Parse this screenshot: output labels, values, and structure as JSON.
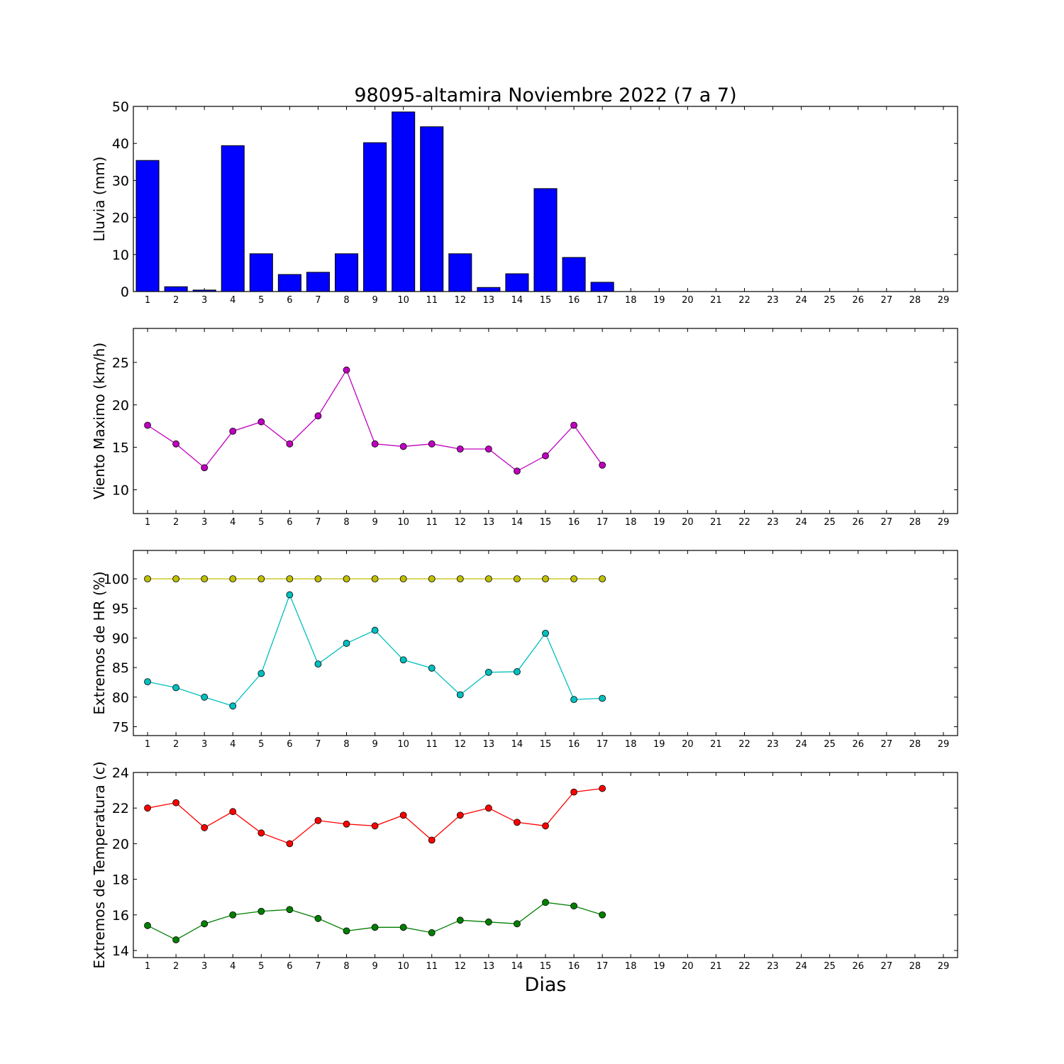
{
  "title": "98095-altamira Noviembre 2022  (7 a 7)",
  "xlabel": "Dias",
  "chart_data": [
    {
      "type": "bar",
      "id": "lluvia",
      "ylabel": "Lluvia (mm)",
      "ylim": [
        0,
        50
      ],
      "yticks": [
        0,
        10,
        20,
        30,
        40,
        50
      ],
      "xlim": [
        0.5,
        29.5
      ],
      "xticks": [
        1,
        2,
        3,
        4,
        5,
        6,
        7,
        8,
        9,
        10,
        11,
        12,
        13,
        14,
        15,
        16,
        17,
        18,
        19,
        20,
        21,
        22,
        23,
        24,
        25,
        26,
        27,
        28,
        29
      ],
      "color": "#0000ff",
      "series": [
        {
          "x": [
            1,
            2,
            3,
            4,
            5,
            6,
            7,
            8,
            9,
            10,
            11,
            12,
            13,
            14,
            15,
            16,
            17
          ],
          "values": [
            35.4,
            1.3,
            0.4,
            39.4,
            10.2,
            4.6,
            5.2,
            10.2,
            40.2,
            48.5,
            44.5,
            10.2,
            1.1,
            4.8,
            27.8,
            9.2,
            2.5
          ]
        }
      ]
    },
    {
      "type": "line",
      "id": "viento",
      "ylabel": "Viento Maximo (km/h)",
      "ylim": [
        7.2,
        29
      ],
      "yticks": [
        10,
        15,
        20,
        25
      ],
      "xlim": [
        0.5,
        29.5
      ],
      "xticks": [
        1,
        2,
        3,
        4,
        5,
        6,
        7,
        8,
        9,
        10,
        11,
        12,
        13,
        14,
        15,
        16,
        17,
        18,
        19,
        20,
        21,
        22,
        23,
        24,
        25,
        26,
        27,
        28,
        29
      ],
      "series": [
        {
          "color": "#bf00bf",
          "x": [
            1,
            2,
            3,
            4,
            5,
            6,
            7,
            8,
            9,
            10,
            11,
            12,
            13,
            14,
            15,
            16,
            17
          ],
          "values": [
            17.6,
            15.4,
            12.6,
            16.9,
            18.0,
            15.4,
            18.7,
            24.1,
            15.4,
            15.1,
            15.4,
            14.8,
            14.8,
            12.2,
            14.0,
            17.6,
            12.9
          ]
        }
      ]
    },
    {
      "type": "line",
      "id": "humedad",
      "ylabel": "Extremos de HR (%)",
      "ylim": [
        73.5,
        104.8
      ],
      "yticks": [
        75,
        80,
        85,
        90,
        95,
        100
      ],
      "xlim": [
        0.5,
        29.5
      ],
      "xticks": [
        1,
        2,
        3,
        4,
        5,
        6,
        7,
        8,
        9,
        10,
        11,
        12,
        13,
        14,
        15,
        16,
        17,
        18,
        19,
        20,
        21,
        22,
        23,
        24,
        25,
        26,
        27,
        28,
        29
      ],
      "series": [
        {
          "color": "#bfbf00",
          "x": [
            1,
            2,
            3,
            4,
            5,
            6,
            7,
            8,
            9,
            10,
            11,
            12,
            13,
            14,
            15,
            16,
            17
          ],
          "values": [
            100,
            100,
            100,
            100,
            100,
            100,
            100,
            100,
            100,
            100,
            100,
            100,
            100,
            100,
            100,
            100,
            100
          ]
        },
        {
          "color": "#00bfbf",
          "x": [
            1,
            2,
            3,
            4,
            5,
            6,
            7,
            8,
            9,
            10,
            11,
            12,
            13,
            14,
            15,
            16,
            17
          ],
          "values": [
            82.6,
            81.6,
            80.0,
            78.5,
            84.0,
            97.3,
            85.6,
            89.1,
            91.3,
            86.3,
            84.9,
            80.4,
            84.2,
            84.3,
            90.8,
            79.6,
            79.8
          ]
        }
      ]
    },
    {
      "type": "line",
      "id": "temperatura",
      "ylabel": "Extremos de Temperatura (c)",
      "ylim": [
        13.6,
        24
      ],
      "yticks": [
        14,
        16,
        18,
        20,
        22,
        24
      ],
      "xlim": [
        0.5,
        29.5
      ],
      "xticks": [
        1,
        2,
        3,
        4,
        5,
        6,
        7,
        8,
        9,
        10,
        11,
        12,
        13,
        14,
        15,
        16,
        17,
        18,
        19,
        20,
        21,
        22,
        23,
        24,
        25,
        26,
        27,
        28,
        29
      ],
      "series": [
        {
          "color": "#ff0000",
          "x": [
            1,
            2,
            3,
            4,
            5,
            6,
            7,
            8,
            9,
            10,
            11,
            12,
            13,
            14,
            15,
            16,
            17
          ],
          "values": [
            22.0,
            22.3,
            20.9,
            21.8,
            20.6,
            20.0,
            21.3,
            21.1,
            21.0,
            21.6,
            20.2,
            21.6,
            22.0,
            21.2,
            21.0,
            22.9,
            23.1
          ]
        },
        {
          "color": "#007f00",
          "x": [
            1,
            2,
            3,
            4,
            5,
            6,
            7,
            8,
            9,
            10,
            11,
            12,
            13,
            14,
            15,
            16,
            17
          ],
          "values": [
            15.4,
            14.6,
            15.5,
            16.0,
            16.2,
            16.3,
            15.8,
            15.1,
            15.3,
            15.3,
            15.0,
            15.7,
            15.6,
            15.5,
            16.7,
            16.5,
            16.0
          ]
        }
      ]
    }
  ]
}
